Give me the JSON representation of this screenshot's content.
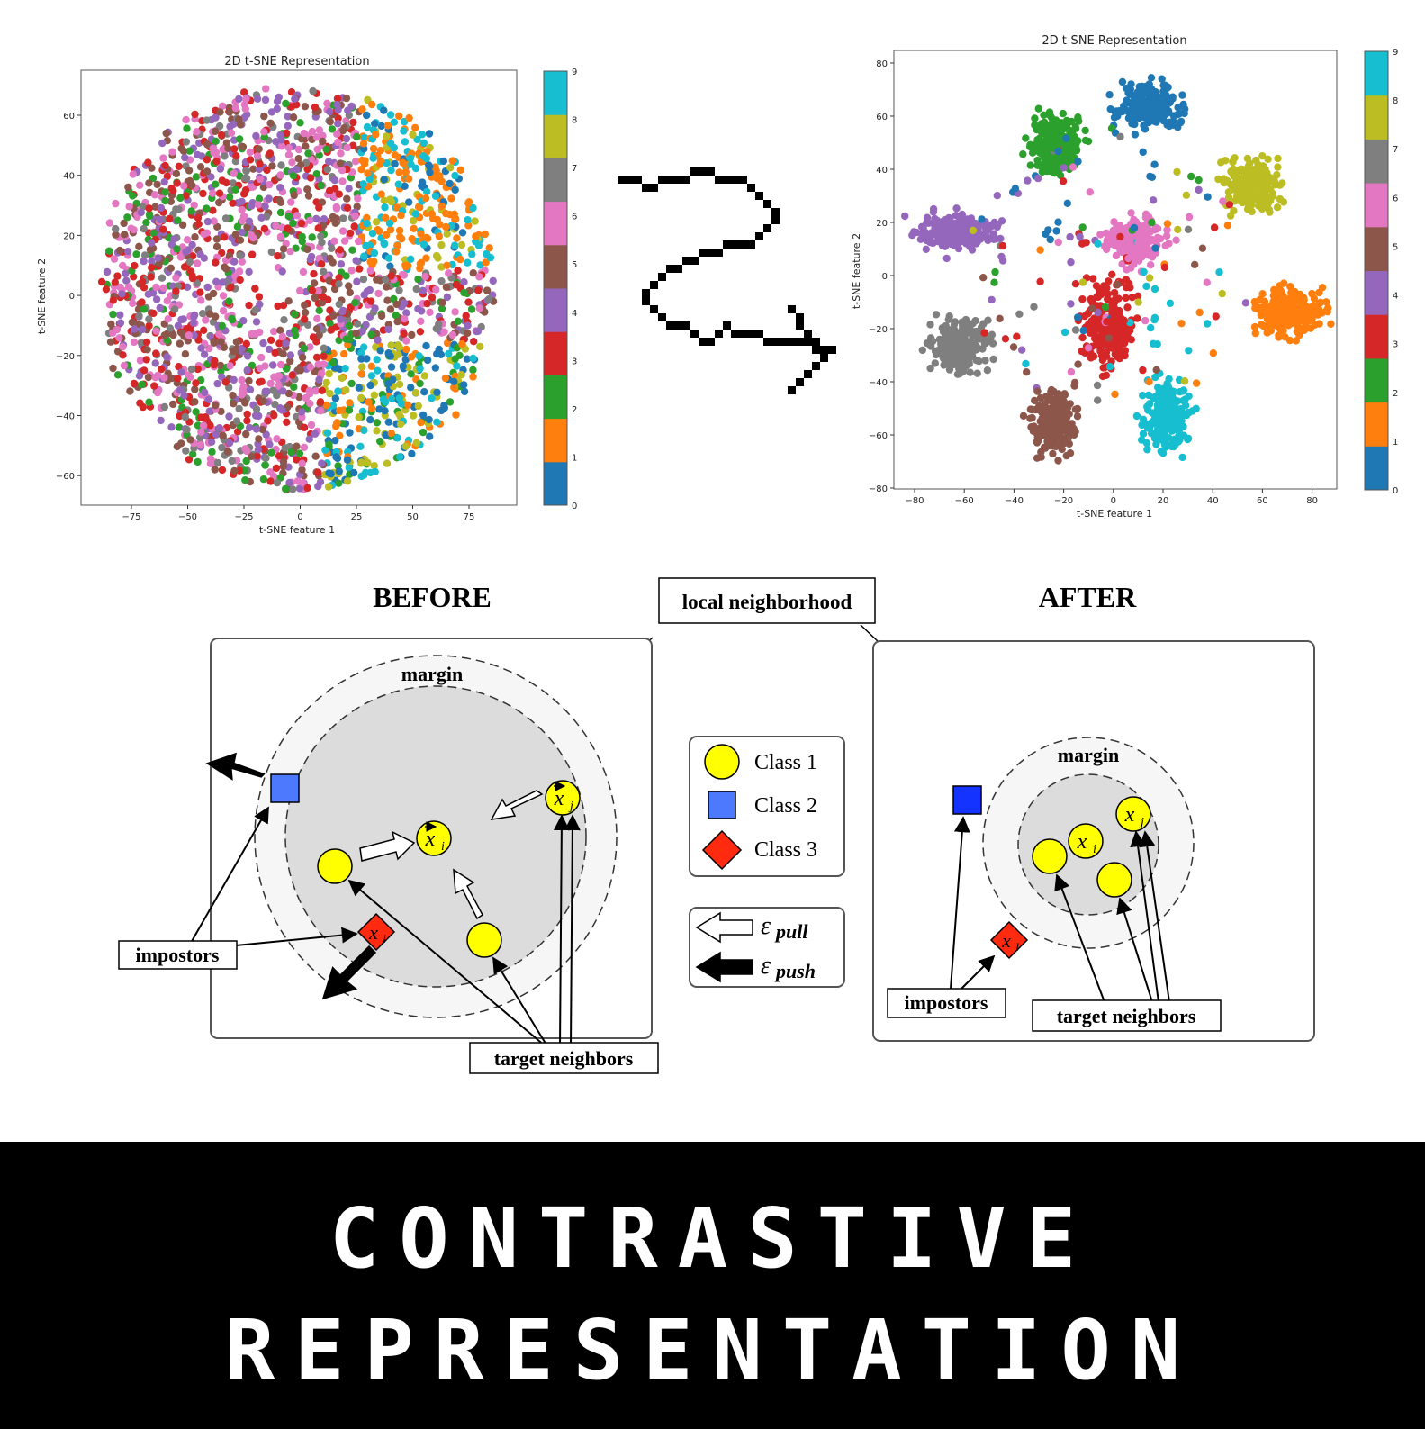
{
  "scatter_left": {
    "title": "2D t-SNE Representation",
    "xlabel": "t-SNE feature 1",
    "ylabel": "t-SNE feature 2",
    "xticks": [
      "−75",
      "−50",
      "−25",
      "0",
      "25",
      "50",
      "75"
    ],
    "yticks": [
      "60",
      "40",
      "20",
      "0",
      "−20",
      "−40",
      "−60"
    ],
    "colorbar_ticks": [
      "0",
      "1",
      "2",
      "3",
      "4",
      "5",
      "6",
      "7",
      "8",
      "9"
    ]
  },
  "scatter_right": {
    "title": "2D t-SNE Representation",
    "xlabel": "t-SNE feature 1",
    "ylabel": "t-SNE feature 2",
    "xticks": [
      "−80",
      "−60",
      "−40",
      "−20",
      "0",
      "20",
      "40",
      "60",
      "80"
    ],
    "yticks": [
      "80",
      "60",
      "40",
      "20",
      "0",
      "−20",
      "−40",
      "−60",
      "−80"
    ],
    "colorbar_ticks": [
      "0",
      "1",
      "2",
      "3",
      "4",
      "5",
      "6",
      "7",
      "8",
      "9"
    ]
  },
  "class_colors": [
    "#1f77b4",
    "#ff7f0e",
    "#2ca02c",
    "#d62728",
    "#9467bd",
    "#8c564b",
    "#e377c2",
    "#7f7f7f",
    "#bcbd22",
    "#17becf"
  ],
  "diagram": {
    "before_title": "BEFORE",
    "after_title": "AFTER",
    "local_neighborhood": "local neighborhood",
    "margin": "margin",
    "impostors": "impostors",
    "target_neighbors": "target neighbors",
    "xi": "x",
    "xi_sub": "i",
    "xj": "x",
    "xj_sub": "j",
    "xl": "x",
    "xl_sub": "l",
    "legend": {
      "class1": "Class 1",
      "class2": "Class 2",
      "class3": "Class 3",
      "pull_eps": "ε",
      "pull_sub": "pull",
      "push_eps": "ε",
      "push_sub": "push"
    },
    "colors": {
      "class1": "#ffff00",
      "class2": "#4d79ff",
      "class2_after": "#1433ff",
      "class3": "#ff2a10"
    }
  },
  "banner": {
    "line1": "CONTRASTIVE",
    "line2": "REPRESENTATION"
  }
}
